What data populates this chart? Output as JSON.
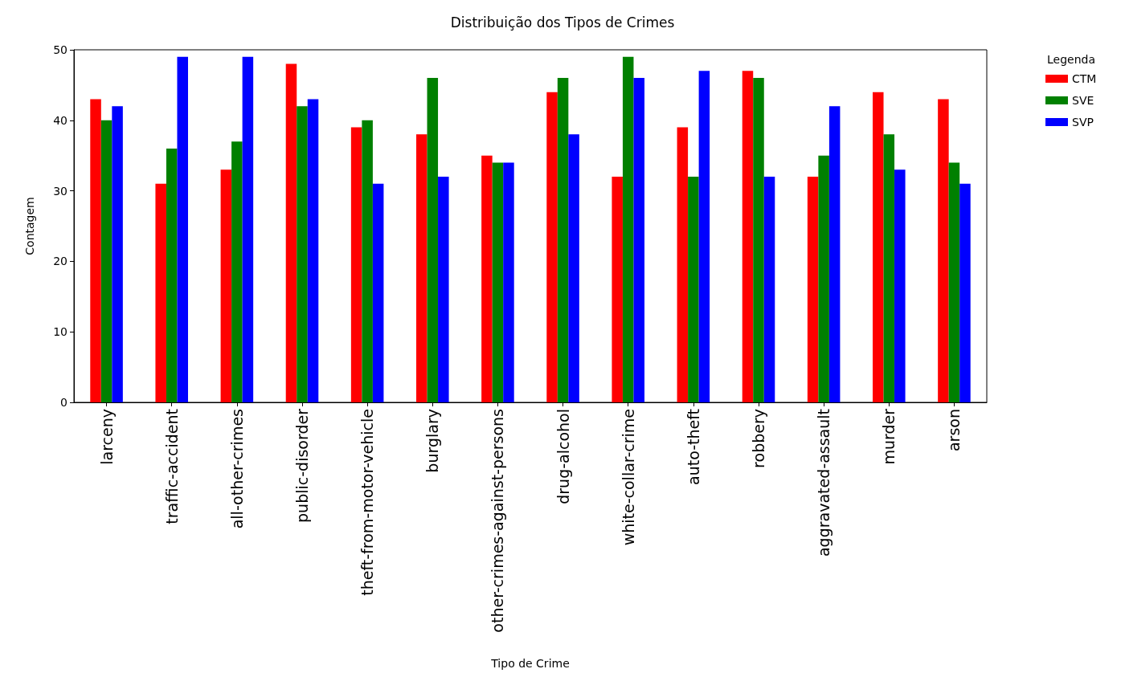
{
  "chart_data": {
    "type": "bar",
    "title": "Distribuição dos Tipos de Crimes",
    "xlabel": "Tipo de Crime",
    "ylabel": "Contagem",
    "legend_title": "Legenda",
    "categories": [
      "larceny",
      "traffic-accident",
      "all-other-crimes",
      "public-disorder",
      "theft-from-motor-vehicle",
      "burglary",
      "other-crimes-against-persons",
      "drug-alcohol",
      "white-collar-crime",
      "auto-theft",
      "robbery",
      "aggravated-assault",
      "murder",
      "arson"
    ],
    "series": [
      {
        "name": "CTM",
        "color": "#ff0000",
        "values": [
          43,
          31,
          33,
          48,
          39,
          38,
          35,
          44,
          32,
          39,
          47,
          32,
          44,
          43
        ]
      },
      {
        "name": "SVE",
        "color": "#008000",
        "values": [
          40,
          36,
          37,
          42,
          40,
          46,
          34,
          46,
          49,
          32,
          46,
          35,
          38,
          34
        ]
      },
      {
        "name": "SVP",
        "color": "#0000ff",
        "values": [
          42,
          49,
          49,
          43,
          31,
          32,
          34,
          38,
          46,
          47,
          32,
          42,
          33,
          31
        ]
      }
    ],
    "ylim": [
      0,
      50
    ],
    "yticks": [
      0,
      10,
      20,
      30,
      40,
      50
    ],
    "grid": false,
    "legend": "top right"
  }
}
